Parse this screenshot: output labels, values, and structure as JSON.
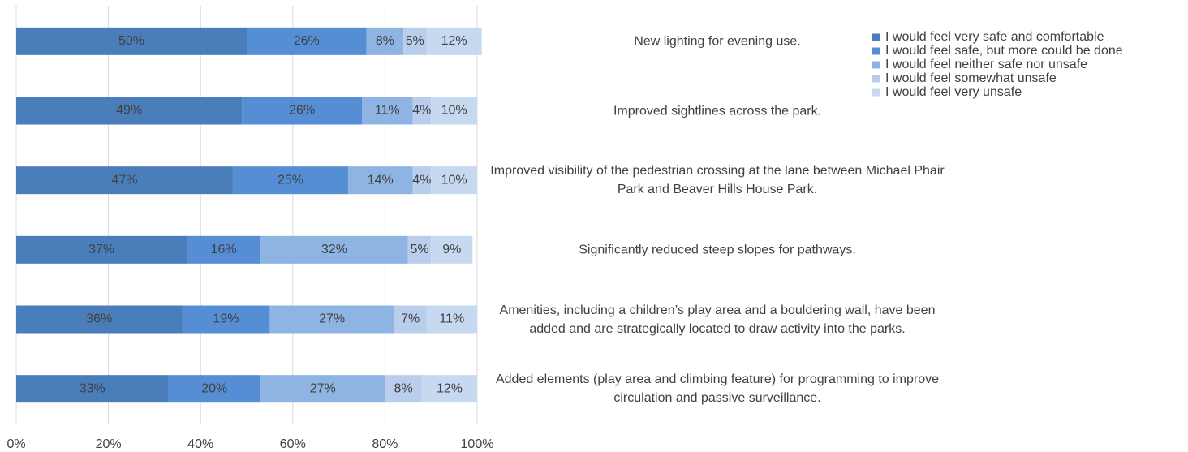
{
  "chart_data": {
    "type": "stacked_barh",
    "categories": [
      "New lighting for evening use.",
      "Improved sightlines across the park.",
      "Improved visibility of the pedestrian crossing at the lane between Michael Phair Park and Beaver Hills House Park.",
      "Significantly reduced steep slopes for pathways.",
      "Amenities, including a children’s play area and a bouldering wall, have been added and are strategically located to draw activity into the parks.",
      "Added elements (play area and climbing feature) for programming to improve circulation and passive surveillance."
    ],
    "series": [
      {
        "name": "I would feel very safe and comfortable",
        "color": "#4a7ebb",
        "values": [
          50,
          49,
          47,
          37,
          36,
          33
        ],
        "value_labels": [
          "50%",
          "49%",
          "47%",
          "37%",
          "36%",
          "33%"
        ]
      },
      {
        "name": "I would feel safe, but more could be done",
        "color": "#558ed5",
        "values": [
          26,
          26,
          25,
          16,
          19,
          20
        ],
        "value_labels": [
          "26%",
          "26%",
          "25%",
          "16%",
          "19%",
          "20%"
        ]
      },
      {
        "name": "I would feel neither safe nor unsafe",
        "color": "#8eb4e3",
        "values": [
          8,
          11,
          14,
          32,
          27,
          27
        ],
        "value_labels": [
          "8%",
          "11%",
          "14%",
          "32%",
          "27%",
          "27%"
        ]
      },
      {
        "name": "I would feel somewhat unsafe",
        "color": "#b9cdec",
        "values": [
          5,
          4,
          4,
          5,
          7,
          8
        ],
        "value_labels": [
          "5%",
          "4%",
          "4%",
          "5%",
          "7%",
          "8%"
        ]
      },
      {
        "name": "I would feel very unsafe",
        "color": "#c6d9f1",
        "values": [
          12,
          10,
          10,
          9,
          11,
          12
        ],
        "value_labels": [
          "12%",
          "10%",
          "10%",
          "9%",
          "11%",
          "12%"
        ]
      }
    ],
    "xlim": [
      0,
      100
    ],
    "xticks": [
      {
        "value": 0,
        "label": "0%"
      },
      {
        "value": 20,
        "label": "20%"
      },
      {
        "value": 40,
        "label": "40%"
      },
      {
        "value": 60,
        "label": "60%"
      },
      {
        "value": 80,
        "label": "80%"
      },
      {
        "value": 100,
        "label": "100%"
      }
    ],
    "grid": true,
    "legend": "upper right"
  }
}
